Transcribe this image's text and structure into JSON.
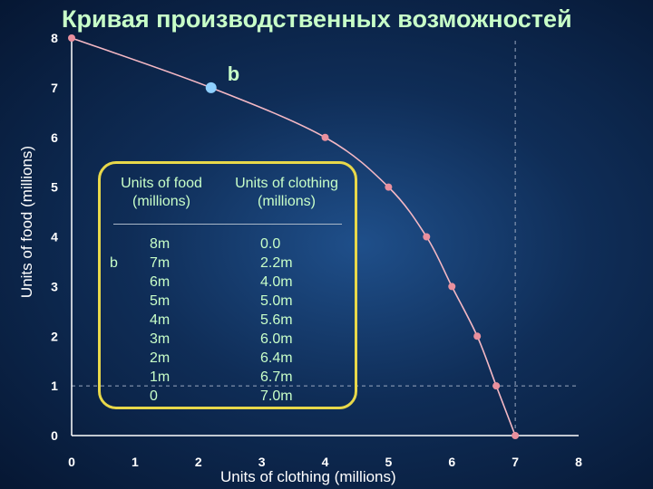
{
  "chart_data": {
    "type": "line",
    "title": "Кривая производственных возможностей",
    "xlabel": "Units of clothing (millions)",
    "ylabel": "Units of food (millions)",
    "xlim": [
      0,
      8
    ],
    "ylim": [
      0,
      8
    ],
    "x_ticks": [
      "0",
      "1",
      "2",
      "3",
      "4",
      "5",
      "6",
      "7",
      "8"
    ],
    "y_ticks": [
      "0",
      "1",
      "2",
      "3",
      "4",
      "5",
      "6",
      "7",
      "8"
    ],
    "grid": false,
    "series": [
      {
        "points": [
          {
            "x": 0.0,
            "y": 8
          },
          {
            "x": 2.2,
            "y": 7
          },
          {
            "x": 4.0,
            "y": 6
          },
          {
            "x": 5.0,
            "y": 5
          },
          {
            "x": 5.6,
            "y": 4
          },
          {
            "x": 6.0,
            "y": 3
          },
          {
            "x": 6.4,
            "y": 2
          },
          {
            "x": 6.7,
            "y": 1
          },
          {
            "x": 7.0,
            "y": 0
          }
        ],
        "color": "#f4b8c4"
      }
    ],
    "highlight_point": {
      "x": 2.2,
      "y": 7,
      "label": "b",
      "color": "#8fd0ff"
    },
    "reference_lines": [
      {
        "type": "vertical",
        "x": 7
      },
      {
        "type": "horizontal",
        "y": 1
      }
    ],
    "table": {
      "headers": {
        "food": "Units of food\n(millions)",
        "clothing": "Units of clothing\n(millions)"
      },
      "row_label": "b",
      "food": [
        "8m",
        "7m",
        "6m",
        "5m",
        "4m",
        "3m",
        "2m",
        "1m",
        "0"
      ],
      "clothing": [
        "0.0",
        "2.2m",
        "4.0m",
        "5.0m",
        "5.6m",
        "6.0m",
        "6.4m",
        "6.7m",
        "7.0m"
      ]
    },
    "colors": {
      "title": "#c8ffc8",
      "curve": "#f4b8c4",
      "point": "#e9909e",
      "table_border": "#e8d84a"
    }
  }
}
